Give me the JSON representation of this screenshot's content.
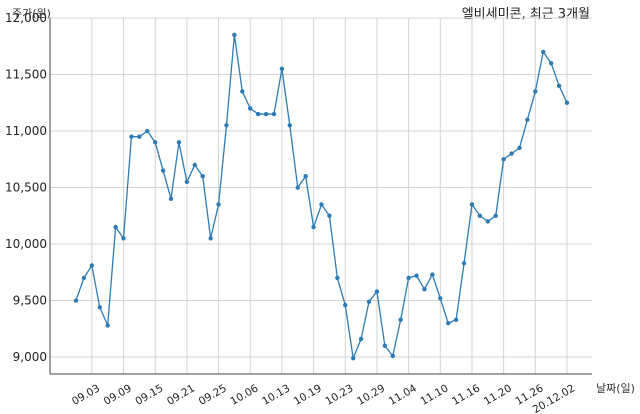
{
  "title": "엘비세미콘, 최근 3개월",
  "chart_data": {
    "type": "line",
    "title": "엘비세미콘, 최근 3개월",
    "ylabel": "주가(원)",
    "xlabel": "날짜(일)",
    "ylim": [
      8850,
      12000
    ],
    "grid": true,
    "y_ticks": [
      "12,000",
      "11,500",
      "11,000",
      "10,500",
      "10,000",
      "9,500",
      "9,000"
    ],
    "y_tick_values": [
      12000,
      11500,
      11000,
      10500,
      10000,
      9500,
      9000
    ],
    "x_tick_labels": [
      "09.03",
      "09.09",
      "09.15",
      "09.21",
      "09.25",
      "10.06",
      "10.13",
      "10.19",
      "10.23",
      "10.29",
      "11.04",
      "11.10",
      "11.16",
      "11.20",
      "11.26",
      "20.12.02"
    ],
    "x_tick_indices": [
      2,
      6,
      10,
      14,
      18,
      22,
      26,
      30,
      34,
      38,
      42,
      46,
      50,
      54,
      58,
      62
    ],
    "series": [
      {
        "color": "#2e7bb4",
        "values": [
          9500,
          9700,
          9810,
          9440,
          9280,
          10150,
          10050,
          10950,
          10950,
          11000,
          10900,
          10650,
          10400,
          10900,
          10550,
          10700,
          10600,
          10050,
          10350,
          11050,
          11850,
          11350,
          11200,
          11150,
          11150,
          11150,
          11550,
          11050,
          10500,
          10600,
          10150,
          10350,
          10250,
          9700,
          9460,
          8990,
          9160,
          9490,
          9580,
          9100,
          9010,
          9330,
          9700,
          9720,
          9600,
          9730,
          9520,
          9300,
          9330,
          9830,
          10350,
          10250,
          10200,
          10250,
          10750,
          10800,
          10850,
          11100,
          11350,
          11700,
          11600,
          11400,
          11250
        ]
      }
    ]
  }
}
